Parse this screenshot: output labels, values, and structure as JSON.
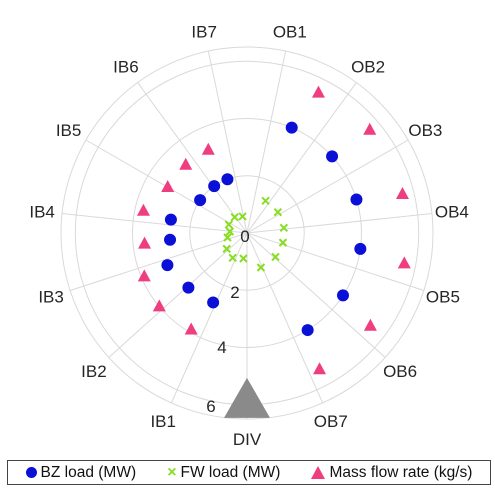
{
  "chart_data": {
    "type": "scatter",
    "projection": "polar",
    "title": "",
    "sectors": [
      "DIV",
      "OB7",
      "OB6",
      "OB5",
      "OB4",
      "OB3",
      "OB2",
      "OB1",
      "IB7",
      "IB6",
      "IB5",
      "IB4",
      "IB3",
      "IB2",
      "IB1"
    ],
    "angular_ticks": [
      "OB1",
      "OB2",
      "OB3",
      "OB4",
      "OB5",
      "OB6",
      "OB7",
      "DIV",
      "IB1",
      "IB2",
      "IB3",
      "IB4",
      "IB5",
      "IB6",
      "IB7"
    ],
    "radial_ticks": [
      "0",
      "2",
      "4",
      "6"
    ],
    "rlim": [
      0,
      6.5
    ],
    "grid": true,
    "legend_position": "bottom",
    "series": [
      {
        "name": "BZ load (MW)",
        "marker": "circle",
        "color": "#0a10d6",
        "points": [
          {
            "angle_deg": 32,
            "r": 4.0
          },
          {
            "angle_deg": 57,
            "r": 4.0
          },
          {
            "angle_deg": 82,
            "r": 4.0
          },
          {
            "angle_deg": 107,
            "r": 4.0
          },
          {
            "angle_deg": 132,
            "r": 4.0
          },
          {
            "angle_deg": 157,
            "r": 4.0
          },
          {
            "angle_deg": 200,
            "r": 2.0
          },
          {
            "angle_deg": 215,
            "r": 2.0
          },
          {
            "angle_deg": 235,
            "r": 2.0
          },
          {
            "angle_deg": 260,
            "r": 2.7
          },
          {
            "angle_deg": 275,
            "r": 2.7
          },
          {
            "angle_deg": 292,
            "r": 3.0
          },
          {
            "angle_deg": 313,
            "r": 2.8
          },
          {
            "angle_deg": 334,
            "r": 2.7
          }
        ]
      },
      {
        "name": "FW load (MW)",
        "marker": "x",
        "color": "#88dd22",
        "points": [
          {
            "angle_deg": 22,
            "r": 1.3
          },
          {
            "angle_deg": 50,
            "r": 1.3
          },
          {
            "angle_deg": 75,
            "r": 1.3
          },
          {
            "angle_deg": 98,
            "r": 1.3
          },
          {
            "angle_deg": 124,
            "r": 1.3
          },
          {
            "angle_deg": 150,
            "r": 1.3
          },
          {
            "angle_deg": 195,
            "r": 0.6
          },
          {
            "angle_deg": 218,
            "r": 0.7
          },
          {
            "angle_deg": 245,
            "r": 0.7
          },
          {
            "angle_deg": 265,
            "r": 0.6
          },
          {
            "angle_deg": 283,
            "r": 0.7
          },
          {
            "angle_deg": 308,
            "r": 0.9
          },
          {
            "angle_deg": 330,
            "r": 1.0
          },
          {
            "angle_deg": 352,
            "r": 0.9
          }
        ]
      },
      {
        "name": "Mass flow rate (kg/s)",
        "marker": "triangle",
        "color": "#ee3e80",
        "points": [
          {
            "angle_deg": 28,
            "r": 5.4
          },
          {
            "angle_deg": 53,
            "r": 5.4
          },
          {
            "angle_deg": 79,
            "r": 5.6
          },
          {
            "angle_deg": 104,
            "r": 5.6
          },
          {
            "angle_deg": 130,
            "r": 5.6
          },
          {
            "angle_deg": 153,
            "r": 5.5
          },
          {
            "angle_deg": 205,
            "r": 3.2
          },
          {
            "angle_deg": 222,
            "r": 3.2
          },
          {
            "angle_deg": 240,
            "r": 3.2
          },
          {
            "angle_deg": 258,
            "r": 3.7
          },
          {
            "angle_deg": 276,
            "r": 3.6
          },
          {
            "angle_deg": 293,
            "r": 3.9
          },
          {
            "angle_deg": 310,
            "r": 4.0
          },
          {
            "angle_deg": 330,
            "r": 3.9
          }
        ]
      },
      {
        "name": "",
        "marker": "big-triangle",
        "color": "#8a8a8a",
        "points": [
          {
            "angle_deg": 0,
            "r": 5.9
          }
        ]
      }
    ]
  }
}
